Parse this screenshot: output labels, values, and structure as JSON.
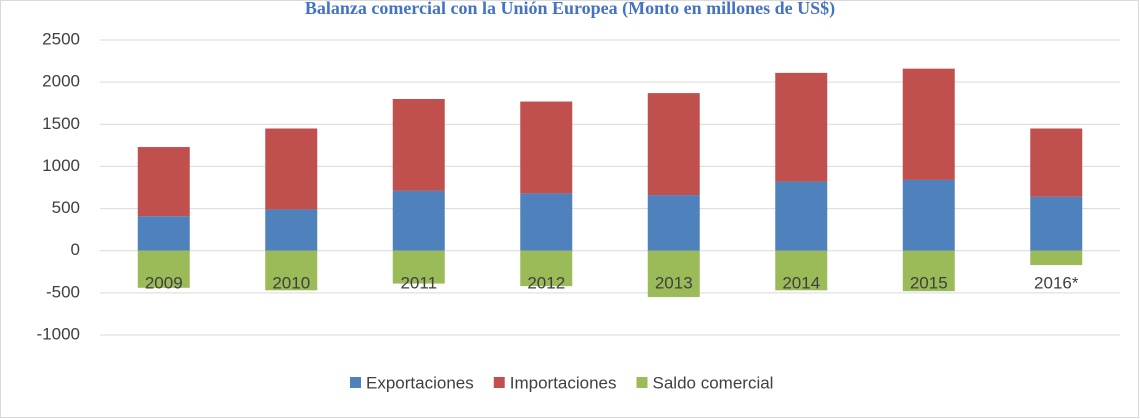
{
  "chart_data": {
    "type": "stacked_bar",
    "title": "Balanza comercial con la Unión Europea (Monto en millones de US$)",
    "categories": [
      "2009",
      "2010",
      "2011",
      "2012",
      "2013",
      "2014",
      "2015",
      "2016*"
    ],
    "series": [
      {
        "name": "Exportaciones",
        "color": "#4f81bd",
        "values": [
          410,
          490,
          710,
          680,
          660,
          820,
          840,
          640
        ]
      },
      {
        "name": "Importaciones",
        "color": "#c0504d",
        "values": [
          820,
          960,
          1090,
          1090,
          1210,
          1290,
          1320,
          810
        ]
      },
      {
        "name": "Saldo comercial",
        "color": "#9bbb59",
        "values": [
          -440,
          -470,
          -390,
          -420,
          -550,
          -470,
          -480,
          -170
        ]
      }
    ],
    "ylim": [
      -1000,
      2500
    ],
    "yticks": [
      -1000,
      -500,
      0,
      500,
      1000,
      1500,
      2000,
      2500
    ],
    "grid": true,
    "legend": "bottom"
  }
}
